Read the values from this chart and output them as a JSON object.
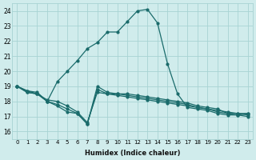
{
  "xlabel": "Humidex (Indice chaleur)",
  "xlim": [
    -0.5,
    23.5
  ],
  "ylim": [
    15.5,
    24.5
  ],
  "xticks": [
    0,
    1,
    2,
    3,
    4,
    5,
    6,
    7,
    8,
    9,
    10,
    11,
    12,
    13,
    14,
    15,
    16,
    17,
    18,
    19,
    20,
    21,
    22,
    23
  ],
  "yticks": [
    16,
    17,
    18,
    19,
    20,
    21,
    22,
    23,
    24
  ],
  "bg_color": "#d0ecec",
  "grid_color": "#a8d4d4",
  "line_color": "#1a6b6b",
  "line_main_x": [
    0,
    1,
    2,
    3,
    4,
    5,
    6,
    7,
    8,
    9,
    10,
    11,
    12,
    13,
    14,
    15,
    16,
    17,
    18,
    19,
    20,
    21,
    22,
    23
  ],
  "line_main_y": [
    19.0,
    18.7,
    18.5,
    18.0,
    19.3,
    20.0,
    20.7,
    21.5,
    21.9,
    22.6,
    22.6,
    23.3,
    24.0,
    24.1,
    23.2,
    20.5,
    18.5,
    17.6,
    17.5,
    17.4,
    17.2,
    17.1,
    17.1,
    17.2
  ],
  "line2_x": [
    0,
    1,
    2,
    3,
    4,
    5,
    6,
    7,
    8,
    9,
    10,
    11,
    12,
    13,
    14,
    15,
    16,
    17,
    18,
    19,
    20,
    21,
    22,
    23
  ],
  "line2_y": [
    19.0,
    18.7,
    18.6,
    18.0,
    17.7,
    17.3,
    17.2,
    16.5,
    19.0,
    18.6,
    18.5,
    18.5,
    18.4,
    18.3,
    18.2,
    18.1,
    18.0,
    17.9,
    17.7,
    17.6,
    17.5,
    17.2,
    17.2,
    17.2
  ],
  "line3_x": [
    0,
    1,
    2,
    3,
    4,
    5,
    6,
    7,
    8,
    9,
    10,
    11,
    12,
    13,
    14,
    15,
    16,
    17,
    18,
    19,
    20,
    21,
    22,
    23
  ],
  "line3_y": [
    19.0,
    18.6,
    18.5,
    18.1,
    18.0,
    17.7,
    17.3,
    16.6,
    18.6,
    18.5,
    18.5,
    18.4,
    18.3,
    18.2,
    18.1,
    18.0,
    17.9,
    17.8,
    17.6,
    17.5,
    17.4,
    17.3,
    17.2,
    17.1
  ],
  "line4_x": [
    0,
    1,
    2,
    3,
    4,
    5,
    6,
    7,
    8,
    9,
    10,
    11,
    12,
    13,
    14,
    15,
    16,
    17,
    18,
    19,
    20,
    21,
    22,
    23
  ],
  "line4_y": [
    19.0,
    18.6,
    18.5,
    18.0,
    17.8,
    17.5,
    17.2,
    16.5,
    18.8,
    18.5,
    18.4,
    18.3,
    18.2,
    18.1,
    18.0,
    17.9,
    17.8,
    17.7,
    17.6,
    17.5,
    17.3,
    17.2,
    17.1,
    17.0
  ],
  "marker_size": 2.0,
  "linewidth": 0.9
}
